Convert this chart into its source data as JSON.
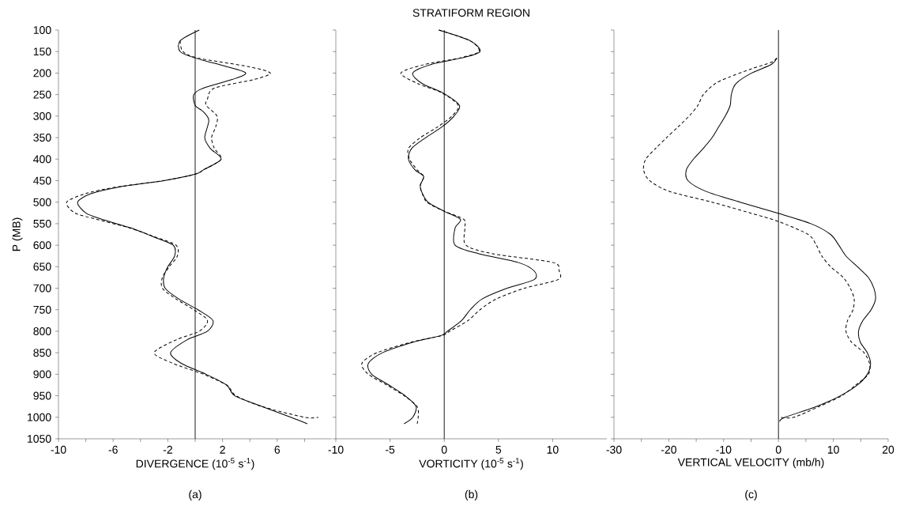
{
  "chart_data": [
    {
      "type": "line",
      "xlabel": "DIVERGENCE (10$^{-5}$ s$^{-1}$)",
      "ylabel": "P (MB)",
      "xlim": [
        -10,
        10
      ],
      "ylim": [
        1050,
        100
      ],
      "xticks": [
        -10,
        {
          "value": -8,
          "label": null
        },
        -6,
        {
          "value": -4,
          "label": null
        },
        -2,
        {
          "value": 0,
          "label": null
        },
        2,
        {
          "value": 4,
          "label": null
        },
        6,
        {
          "value": 8,
          "label": null
        }
      ],
      "yticks": [
        100,
        150,
        200,
        250,
        300,
        350,
        400,
        450,
        500,
        550,
        600,
        650,
        700,
        750,
        800,
        850,
        900,
        950,
        1000,
        1050
      ],
      "ref_lines": [
        {
          "axis": "x",
          "value": 0
        }
      ],
      "annotations": [
        "(a)"
      ],
      "series": [
        {
          "color": "#000000",
          "line_style": "solid",
          "x": [
            0.3,
            -1.1,
            -1.1,
            0,
            2.3,
            3.7,
            2.7,
            0.6,
            -0.1,
            0,
            0.6,
            1.0,
            0.7,
            1.1,
            1.9,
            0.6,
            0,
            -2.3,
            -5.6,
            -7.6,
            -8.6,
            -8.0,
            -6.8,
            -4.7,
            -3.1,
            -1.6,
            -1.5,
            -2.0,
            -2.3,
            -2.2,
            -1.2,
            0.2,
            1.3,
            0.9,
            -0.6,
            -1.8,
            -1.0,
            0.8,
            2.3,
            2.9,
            4.9,
            7.0,
            8.2
          ],
          "values": [
            100,
            125,
            150,
            165,
            185,
            200,
            215,
            235,
            250,
            275,
            290,
            310,
            350,
            375,
            400,
            425,
            435,
            450,
            465,
            480,
            500,
            525,
            540,
            560,
            580,
            600,
            625,
            650,
            675,
            700,
            725,
            750,
            775,
            800,
            820,
            850,
            875,
            900,
            925,
            950,
            975,
            1000,
            1015
          ]
        },
        {
          "color": "#000000",
          "line_style": "dashed",
          "x": [
            -1.1,
            -0.9,
            0.2,
            3.9,
            5.5,
            4.3,
            1.4,
            0.9,
            0.8,
            1.6,
            1.5,
            1.2,
            1.4,
            1.9,
            0.6,
            0,
            -2.3,
            -5.8,
            -8.0,
            -9.4,
            -8.8,
            -7.2,
            -4.8,
            -3.0,
            -1.4,
            -1.3,
            -1.9,
            -2.4,
            -2.4,
            -1.4,
            -0.1,
            0.9,
            0.3,
            -1.4,
            -3.0,
            -1.6,
            0.6,
            2.3,
            3.0,
            4.9,
            8.0,
            9.0
          ],
          "values": [
            125,
            150,
            165,
            185,
            200,
            215,
            235,
            260,
            275,
            300,
            325,
            350,
            375,
            400,
            425,
            435,
            450,
            465,
            480,
            500,
            525,
            540,
            560,
            580,
            600,
            625,
            650,
            675,
            700,
            725,
            750,
            775,
            800,
            820,
            850,
            875,
            900,
            925,
            950,
            975,
            1000,
            1000
          ]
        }
      ]
    },
    {
      "type": "line",
      "title": "STRATIFORM REGION",
      "xlabel": "VORTICITY (10$^{-5}$ s$^{-1}$)",
      "xlim": [
        -10,
        15
      ],
      "ylim": [
        1050,
        100
      ],
      "xticks": [
        -10,
        -5,
        0,
        5,
        10
      ],
      "yticks": [
        100,
        150,
        200,
        250,
        300,
        350,
        400,
        450,
        500,
        550,
        600,
        650,
        700,
        750,
        800,
        850,
        900,
        950,
        1000,
        1050
      ],
      "tick_labels": "x",
      "ref_lines": [
        {
          "axis": "x",
          "value": 0
        }
      ],
      "annotations": [
        "(b)"
      ],
      "series": [
        {
          "color": "#000000",
          "line_style": "solid",
          "x": [
            -0.5,
            2.4,
            3.3,
            1.6,
            -1.2,
            -2.9,
            -2.0,
            -0.2,
            1.4,
            0.9,
            -0.2,
            -1.7,
            -3.0,
            -3.3,
            -2.7,
            -1.9,
            -2.2,
            -2.1,
            -1.5,
            -0.1,
            1.5,
            1.0,
            1.0,
            3.2,
            6.8,
            8.3,
            8.3,
            5.8,
            3.5,
            2.4,
            1.6,
            0.3,
            -0.3,
            -2.8,
            -5.7,
            -7.0,
            -6.7,
            -5.1,
            -3.6,
            -2.6,
            -2.9,
            -3.7
          ],
          "values": [
            100,
            125,
            150,
            165,
            180,
            200,
            225,
            245,
            275,
            300,
            325,
            350,
            375,
            400,
            425,
            440,
            460,
            475,
            500,
            520,
            540,
            560,
            600,
            620,
            640,
            660,
            680,
            700,
            725,
            750,
            775,
            800,
            810,
            825,
            850,
            875,
            900,
            925,
            950,
            975,
            1000,
            1015
          ]
        },
        {
          "color": "#000000",
          "line_style": "dashed",
          "x": [
            -0.5,
            2.4,
            3.2,
            1.4,
            -1.8,
            -4.0,
            -2.4,
            -0.3,
            1.3,
            0.7,
            -0.6,
            -2.2,
            -3.3,
            -3.2,
            -2.5,
            -1.9,
            -2.2,
            -2.1,
            -1.6,
            -0.1,
            1.8,
            1.9,
            2.0,
            4.5,
            10.0,
            10.6,
            10.5,
            7.4,
            4.8,
            3.3,
            2.2,
            0.5,
            -0.2,
            -3.0,
            -6.2,
            -7.6,
            -7.0,
            -5.3,
            -3.7,
            -2.5,
            -2.4,
            -2.5
          ],
          "values": [
            100,
            125,
            150,
            165,
            180,
            200,
            225,
            245,
            275,
            300,
            325,
            350,
            375,
            400,
            425,
            440,
            460,
            475,
            500,
            520,
            540,
            560,
            600,
            620,
            640,
            660,
            680,
            700,
            725,
            750,
            775,
            800,
            810,
            825,
            850,
            875,
            900,
            925,
            950,
            975,
            1000,
            1015
          ]
        }
      ]
    },
    {
      "type": "line",
      "xlabel": "VERTICAL VELOCITY (mb/h)",
      "xlim": [
        -30,
        20
      ],
      "ylim": [
        1050,
        100
      ],
      "xticks": [
        -30,
        {
          "value": -25,
          "label": null
        },
        -20,
        {
          "value": -15,
          "label": null
        },
        -10,
        {
          "value": -5,
          "label": null
        },
        0,
        {
          "value": 5,
          "label": null
        },
        10,
        {
          "value": 15,
          "label": null
        },
        20
      ],
      "yticks": [
        100,
        150,
        200,
        250,
        300,
        350,
        400,
        450,
        500,
        550,
        600,
        650,
        700,
        750,
        800,
        850,
        900,
        950,
        1000,
        1050
      ],
      "tick_labels": "x",
      "ref_lines": [
        {
          "axis": "x",
          "value": 0
        }
      ],
      "annotations": [
        "(c)"
      ],
      "series": [
        {
          "color": "#000000",
          "line_style": "solid",
          "x": [
            -0.3,
            -1.3,
            -4.9,
            -7.8,
            -8.6,
            -8.8,
            -9.7,
            -10.9,
            -12.1,
            -13.7,
            -15.5,
            -16.8,
            -16.5,
            -13.2,
            -7.0,
            -0.3,
            5.9,
            9.5,
            11.0,
            12.3,
            14.4,
            16.4,
            17.4,
            17.7,
            16.9,
            15.4,
            14.6,
            14.9,
            16.2,
            16.8,
            16.2,
            14.4,
            11.3,
            6.9,
            1.2,
            0.2
          ],
          "values": [
            165,
            180,
            200,
            225,
            250,
            275,
            300,
            325,
            350,
            375,
            400,
            425,
            450,
            475,
            500,
            525,
            550,
            575,
            600,
            625,
            650,
            675,
            700,
            725,
            750,
            775,
            800,
            825,
            850,
            875,
            900,
            925,
            950,
            975,
            1000,
            1010
          ]
        },
        {
          "color": "#000000",
          "line_style": "dashed",
          "x": [
            -0.3,
            -1.3,
            -4.9,
            -9.1,
            -11.6,
            -13.7,
            -14.7,
            -16.3,
            -18.3,
            -20.4,
            -22.4,
            -24.2,
            -24.6,
            -23.5,
            -19.9,
            -12.1,
            -5.2,
            0,
            5.4,
            6.9,
            7.9,
            9.5,
            11.8,
            13.1,
            13.8,
            13.6,
            12.6,
            12.3,
            13.3,
            15.6,
            16.6,
            16.4,
            14.1,
            11.5,
            7.4,
            2.8,
            0.2
          ],
          "values": [
            165,
            175,
            190,
            210,
            225,
            250,
            275,
            300,
            325,
            350,
            375,
            400,
            425,
            450,
            475,
            500,
            525,
            545,
            575,
            600,
            625,
            650,
            675,
            700,
            725,
            750,
            775,
            800,
            825,
            850,
            875,
            900,
            925,
            950,
            975,
            1000,
            1000
          ]
        }
      ]
    }
  ]
}
